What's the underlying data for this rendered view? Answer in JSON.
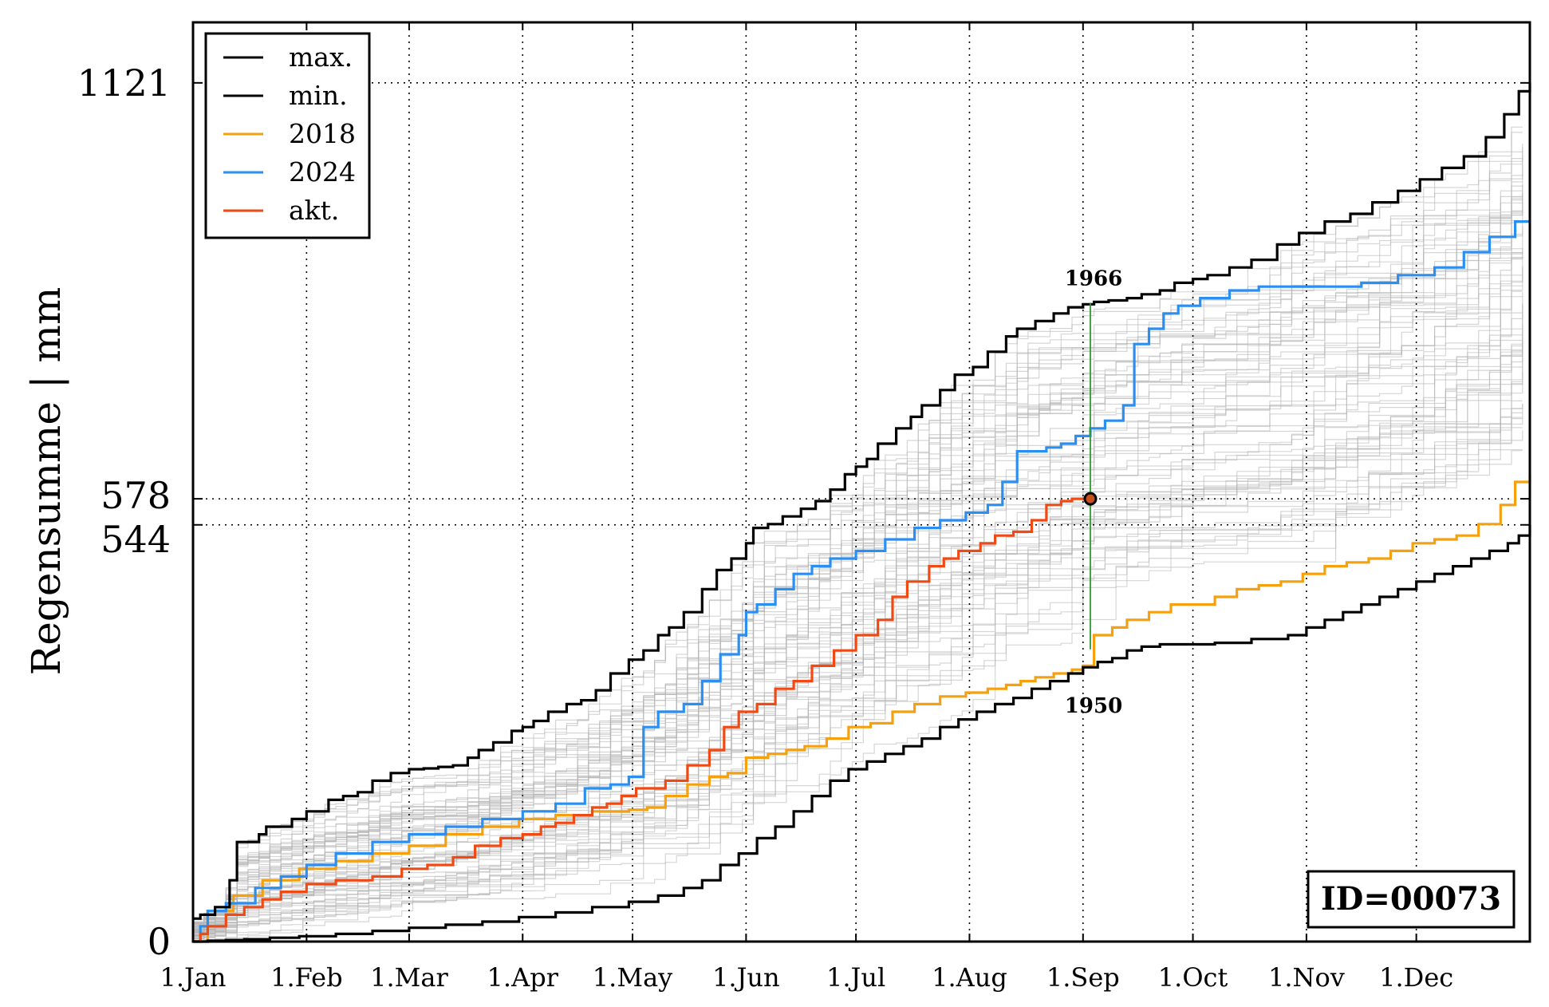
{
  "chart_data": {
    "type": "line",
    "title": "",
    "xlabel": "",
    "ylabel": "Regensumme | mm",
    "x_tick_labels": [
      "1.Jan",
      "1.Feb",
      "1.Mar",
      "1.Apr",
      "1.May",
      "1.Jun",
      "1.Jul",
      "1.Aug",
      "1.Sep",
      "1.Oct",
      "1.Nov",
      "1.Dec"
    ],
    "x_tick_days": [
      1,
      32,
      60,
      91,
      121,
      152,
      182,
      213,
      244,
      274,
      305,
      335
    ],
    "x_range_days": [
      1,
      366
    ],
    "y_tick_labels": [
      "0",
      "544",
      "578",
      "1121"
    ],
    "y_ticks": [
      0,
      544,
      578,
      1121
    ],
    "ylim": [
      0,
      1200
    ],
    "grid": "dotted at ticks",
    "legend_position": "top-left",
    "legend": [
      "max.",
      "min.",
      "2018",
      "2024",
      "akt."
    ],
    "annotations": {
      "max_year": "1966",
      "min_year": "1950",
      "id_box": "ID=00073",
      "current_day": 246,
      "current_value": 578
    },
    "colors": {
      "max": "#000000",
      "min": "#000000",
      "2018": "#f5a10f",
      "2024": "#2a8ff0",
      "akt": "#f04a14",
      "background_series": "#b4b4b4",
      "marker_line": "#2e9a2e"
    },
    "series": [
      {
        "name": "max.",
        "x": [
          1,
          3,
          7,
          11,
          13,
          19,
          21,
          28,
          32,
          38,
          42,
          46,
          50,
          55,
          60,
          64,
          68,
          72,
          76,
          79,
          83,
          88,
          91,
          94,
          98,
          103,
          107,
          111,
          115,
          120,
          124,
          128,
          131,
          135,
          140,
          144,
          148,
          152,
          154,
          158,
          162,
          167,
          171,
          175,
          179,
          182,
          185,
          188,
          193,
          197,
          200,
          205,
          209,
          214,
          218,
          223,
          226,
          231,
          236,
          240,
          244,
          247,
          251,
          256,
          260,
          265,
          269,
          274,
          278,
          284,
          290,
          297,
          303,
          310,
          317,
          323,
          330,
          336,
          342,
          348,
          354,
          359,
          363,
          366
        ],
        "values": [
          30,
          35,
          45,
          80,
          130,
          140,
          150,
          160,
          170,
          185,
          190,
          195,
          210,
          220,
          225,
          226,
          228,
          230,
          240,
          250,
          260,
          275,
          280,
          288,
          300,
          310,
          315,
          328,
          350,
          368,
          380,
          400,
          410,
          430,
          460,
          485,
          500,
          520,
          540,
          545,
          555,
          565,
          575,
          590,
          610,
          620,
          630,
          650,
          670,
          685,
          700,
          720,
          740,
          750,
          770,
          790,
          800,
          810,
          820,
          828,
          832,
          835,
          837,
          840,
          845,
          850,
          860,
          865,
          870,
          880,
          890,
          910,
          925,
          940,
          950,
          965,
          980,
          995,
          1010,
          1025,
          1050,
          1080,
          1110,
          1121
        ]
      },
      {
        "name": "min.",
        "x": [
          1,
          5,
          10,
          15,
          22,
          30,
          40,
          50,
          60,
          70,
          80,
          90,
          100,
          110,
          120,
          128,
          135,
          140,
          145,
          150,
          155,
          160,
          165,
          170,
          175,
          180,
          185,
          190,
          195,
          200,
          205,
          210,
          215,
          220,
          225,
          230,
          235,
          240,
          244,
          248,
          252,
          256,
          260,
          265,
          270,
          280,
          290,
          300,
          305,
          310,
          315,
          320,
          325,
          330,
          335,
          340,
          345,
          350,
          355,
          360,
          363,
          366
        ],
        "values": [
          0,
          1,
          2,
          3,
          5,
          7,
          10,
          14,
          18,
          22,
          26,
          32,
          38,
          45,
          52,
          60,
          70,
          80,
          100,
          115,
          135,
          150,
          170,
          190,
          210,
          225,
          235,
          245,
          255,
          265,
          280,
          290,
          300,
          310,
          318,
          330,
          340,
          350,
          358,
          365,
          370,
          380,
          385,
          388,
          388,
          390,
          395,
          400,
          410,
          420,
          430,
          440,
          450,
          460,
          470,
          480,
          490,
          500,
          510,
          520,
          530,
          544
        ]
      },
      {
        "name": "2018",
        "x": [
          1,
          5,
          12,
          20,
          30,
          40,
          50,
          60,
          70,
          80,
          90,
          100,
          110,
          120,
          125,
          130,
          136,
          142,
          147,
          152,
          158,
          163,
          168,
          174,
          180,
          186,
          192,
          198,
          205,
          212,
          218,
          223,
          227,
          231,
          236,
          241,
          244,
          247,
          252,
          256,
          262,
          268,
          274,
          280,
          286,
          292,
          298,
          304,
          310,
          316,
          322,
          328,
          334,
          340,
          346,
          352,
          358,
          362,
          366
        ],
        "values": [
          0,
          40,
          60,
          80,
          95,
          105,
          115,
          125,
          140,
          150,
          160,
          165,
          170,
          172,
          175,
          190,
          205,
          215,
          220,
          240,
          245,
          250,
          255,
          265,
          280,
          285,
          300,
          310,
          320,
          325,
          330,
          335,
          340,
          345,
          350,
          355,
          360,
          400,
          410,
          420,
          430,
          440,
          440,
          450,
          460,
          465,
          470,
          480,
          490,
          495,
          500,
          510,
          520,
          525,
          530,
          545,
          570,
          600,
          610
        ]
      },
      {
        "name": "2024",
        "x": [
          1,
          3,
          5,
          10,
          18,
          25,
          32,
          40,
          50,
          60,
          70,
          80,
          91,
          100,
          108,
          115,
          120,
          124,
          128,
          135,
          140,
          145,
          150,
          152,
          155,
          160,
          165,
          170,
          175,
          182,
          190,
          198,
          205,
          212,
          218,
          222,
          226,
          230,
          234,
          238,
          242,
          246,
          250,
          255,
          258,
          262,
          266,
          270,
          276,
          284,
          292,
          300,
          310,
          320,
          330,
          340,
          348,
          355,
          362,
          366
        ],
        "values": [
          0,
          20,
          40,
          50,
          70,
          85,
          100,
          115,
          130,
          140,
          150,
          160,
          170,
          180,
          200,
          205,
          215,
          280,
          300,
          310,
          340,
          375,
          400,
          430,
          440,
          460,
          480,
          490,
          500,
          510,
          525,
          540,
          550,
          560,
          570,
          600,
          640,
          640,
          645,
          650,
          660,
          670,
          680,
          700,
          780,
          800,
          820,
          830,
          840,
          850,
          855,
          855,
          855,
          860,
          870,
          880,
          900,
          920,
          940,
          940
        ]
      },
      {
        "name": "akt.",
        "x": [
          1,
          3,
          5,
          10,
          15,
          20,
          25,
          32,
          40,
          50,
          58,
          65,
          72,
          78,
          85,
          91,
          96,
          100,
          105,
          110,
          114,
          118,
          122,
          130,
          136,
          142,
          146,
          150,
          155,
          160,
          165,
          170,
          176,
          182,
          188,
          192,
          196,
          202,
          206,
          210,
          216,
          220,
          225,
          230,
          234,
          238,
          241,
          244,
          246
        ],
        "values": [
          0,
          10,
          20,
          35,
          45,
          55,
          65,
          75,
          80,
          85,
          95,
          100,
          110,
          125,
          135,
          140,
          150,
          155,
          165,
          175,
          180,
          190,
          200,
          210,
          230,
          250,
          280,
          300,
          310,
          330,
          340,
          360,
          380,
          400,
          420,
          450,
          470,
          490,
          500,
          510,
          520,
          530,
          535,
          550,
          570,
          575,
          578,
          578,
          578
        ]
      }
    ]
  }
}
